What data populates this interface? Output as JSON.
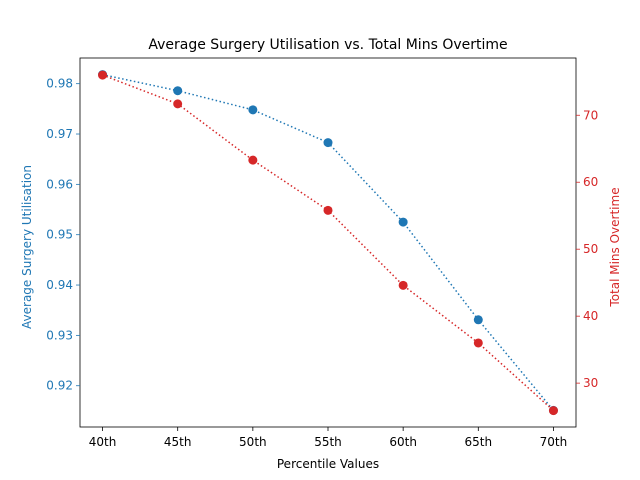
{
  "chart_data": {
    "type": "line",
    "title": "Average Surgery Utilisation vs. Total Mins Overtime",
    "xlabel": "Percentile Values",
    "categories": [
      "40th",
      "45th",
      "50th",
      "55th",
      "60th",
      "65th",
      "70th"
    ],
    "left_axis": {
      "label": "Average Surgery Utilisation",
      "color": "#1f77b4",
      "ylim": [
        0.9118,
        0.9851
      ],
      "ticks": [
        "0.92",
        "0.93",
        "0.94",
        "0.95",
        "0.96",
        "0.97",
        "0.98"
      ]
    },
    "right_axis": {
      "label": "Total Mins Overtime",
      "color": "#d62728",
      "ylim": [
        23.45,
        78.55
      ],
      "ticks": [
        "30",
        "40",
        "50",
        "60",
        "70"
      ]
    },
    "series": [
      {
        "axis": "left",
        "color": "#1f77b4",
        "line_style": "dotted",
        "marker": "circle",
        "values": [
          0.9818,
          0.9786,
          0.9748,
          0.9683,
          0.9525,
          0.9331,
          0.9151
        ]
      },
      {
        "axis": "right",
        "color": "#d62728",
        "line_style": "dotted",
        "marker": "circle",
        "values": [
          76.0,
          71.7,
          63.3,
          55.8,
          44.6,
          36.0,
          25.9
        ]
      }
    ],
    "grid": false,
    "legend": "none"
  }
}
